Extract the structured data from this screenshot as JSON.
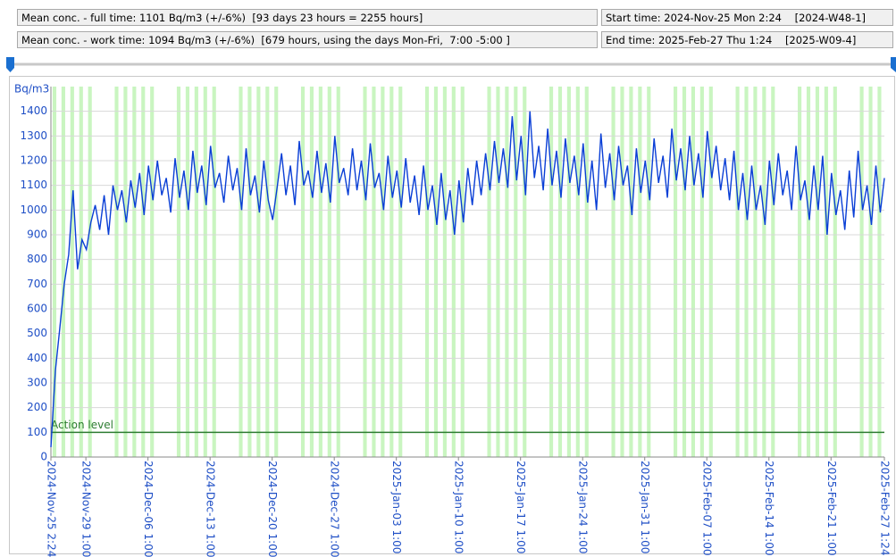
{
  "header": {
    "mean_full": "Mean conc. - full time: 1101 Bq/m3 (+/-6%)  [93 days 23 hours = 2255 hours]",
    "start_time": "Start time: 2024-Nov-25 Mon 2:24    [2024-W48-1]",
    "mean_work": "Mean conc. - work time: 1094 Bq/m3 (+/-6%)  [679 hours, using the days Mon-Fri,  7:00 -5:00 ]",
    "end_time": "End time: 2025-Feb-27 Thu 1:24    [2025-W09-4]"
  },
  "chart_data": {
    "type": "line",
    "y_label": "Bq/m3",
    "color": "#0a3fd6",
    "grid": true,
    "action_level": 100,
    "action_label": "Action level",
    "action_color": "#2e7d32",
    "xlim": [
      0,
      2255
    ],
    "ylim": [
      0,
      1500
    ],
    "yticks": [
      0,
      100,
      200,
      300,
      400,
      500,
      600,
      700,
      800,
      900,
      1000,
      1100,
      1200,
      1300,
      1400
    ],
    "xticks": [
      {
        "value": 0,
        "label": "2024-Nov-25 2:24"
      },
      {
        "value": 94.6,
        "label": "2024-Nov-29 1:00"
      },
      {
        "value": 262.6,
        "label": "2024-Dec-06 1:00"
      },
      {
        "value": 430.6,
        "label": "2024-Dec-13 1:00"
      },
      {
        "value": 598.6,
        "label": "2024-Dec-20 1:00"
      },
      {
        "value": 766.6,
        "label": "2024-Dec-27 1:00"
      },
      {
        "value": 934.6,
        "label": "2025-Jan-03 1:00"
      },
      {
        "value": 1102.6,
        "label": "2025-Jan-10 1:00"
      },
      {
        "value": 1270.6,
        "label": "2025-Jan-17 1:00"
      },
      {
        "value": 1438.6,
        "label": "2025-Jan-24 1:00"
      },
      {
        "value": 1606.6,
        "label": "2025-Jan-31 1:00"
      },
      {
        "value": 1774.6,
        "label": "2025-Feb-07 1:00"
      },
      {
        "value": 1942.6,
        "label": "2025-Feb-14 1:00"
      },
      {
        "value": 2110.6,
        "label": "2025-Feb-21 1:00"
      },
      {
        "value": 2255,
        "label": "2025-Feb-27 1:24"
      }
    ],
    "x": [
      0,
      12,
      24,
      36,
      48,
      60,
      72,
      84,
      96,
      108,
      120,
      132,
      144,
      156,
      168,
      180,
      192,
      204,
      216,
      228,
      240,
      252,
      264,
      276,
      288,
      300,
      312,
      324,
      336,
      348,
      360,
      372,
      384,
      396,
      408,
      420,
      432,
      444,
      456,
      468,
      480,
      492,
      504,
      516,
      528,
      540,
      552,
      564,
      576,
      588,
      600,
      612,
      624,
      636,
      648,
      660,
      672,
      684,
      696,
      708,
      720,
      732,
      744,
      756,
      768,
      780,
      792,
      804,
      816,
      828,
      840,
      852,
      864,
      876,
      888,
      900,
      912,
      924,
      936,
      948,
      960,
      972,
      984,
      996,
      1008,
      1020,
      1032,
      1044,
      1056,
      1068,
      1080,
      1092,
      1104,
      1116,
      1128,
      1140,
      1152,
      1164,
      1176,
      1188,
      1200,
      1212,
      1224,
      1236,
      1248,
      1260,
      1272,
      1284,
      1296,
      1308,
      1320,
      1332,
      1344,
      1356,
      1368,
      1380,
      1392,
      1404,
      1416,
      1428,
      1440,
      1452,
      1464,
      1476,
      1488,
      1500,
      1512,
      1524,
      1536,
      1548,
      1560,
      1572,
      1584,
      1596,
      1608,
      1620,
      1632,
      1644,
      1656,
      1668,
      1680,
      1692,
      1704,
      1716,
      1728,
      1740,
      1752,
      1764,
      1776,
      1788,
      1800,
      1812,
      1824,
      1836,
      1848,
      1860,
      1872,
      1884,
      1896,
      1908,
      1920,
      1932,
      1944,
      1956,
      1968,
      1980,
      1992,
      2004,
      2016,
      2028,
      2040,
      2052,
      2064,
      2076,
      2088,
      2100,
      2112,
      2124,
      2136,
      2148,
      2160,
      2172,
      2184,
      2196,
      2208,
      2220,
      2232,
      2244,
      2255
    ],
    "values": [
      40,
      350,
      520,
      700,
      820,
      1080,
      760,
      880,
      840,
      950,
      1020,
      920,
      1060,
      900,
      1100,
      1000,
      1080,
      950,
      1120,
      1010,
      1150,
      980,
      1180,
      1040,
      1200,
      1060,
      1130,
      990,
      1210,
      1050,
      1160,
      1000,
      1240,
      1070,
      1180,
      1020,
      1260,
      1090,
      1150,
      1030,
      1220,
      1080,
      1170,
      1000,
      1250,
      1060,
      1140,
      990,
      1200,
      1040,
      960,
      1090,
      1230,
      1060,
      1180,
      1020,
      1280,
      1100,
      1160,
      1050,
      1240,
      1070,
      1190,
      1030,
      1300,
      1110,
      1170,
      1060,
      1250,
      1080,
      1200,
      1040,
      1270,
      1090,
      1150,
      1000,
      1220,
      1050,
      1160,
      1010,
      1210,
      1030,
      1140,
      980,
      1180,
      1000,
      1100,
      940,
      1150,
      960,
      1080,
      900,
      1120,
      950,
      1170,
      1020,
      1200,
      1060,
      1230,
      1080,
      1280,
      1110,
      1250,
      1090,
      1380,
      1120,
      1300,
      1060,
      1400,
      1130,
      1260,
      1080,
      1330,
      1100,
      1240,
      1050,
      1290,
      1110,
      1220,
      1060,
      1270,
      1030,
      1200,
      1000,
      1310,
      1090,
      1230,
      1040,
      1260,
      1100,
      1180,
      980,
      1250,
      1070,
      1200,
      1040,
      1290,
      1110,
      1220,
      1050,
      1330,
      1120,
      1250,
      1080,
      1300,
      1100,
      1230,
      1050,
      1320,
      1130,
      1260,
      1080,
      1210,
      1040,
      1240,
      1000,
      1150,
      960,
      1180,
      1000,
      1100,
      940,
      1200,
      1020,
      1230,
      1060,
      1160,
      1000,
      1260,
      1040,
      1120,
      960,
      1180,
      1000,
      1220,
      900,
      1150,
      980,
      1080,
      920,
      1160,
      970,
      1240,
      1000,
      1100,
      940,
      1180,
      990,
      1130
    ]
  }
}
